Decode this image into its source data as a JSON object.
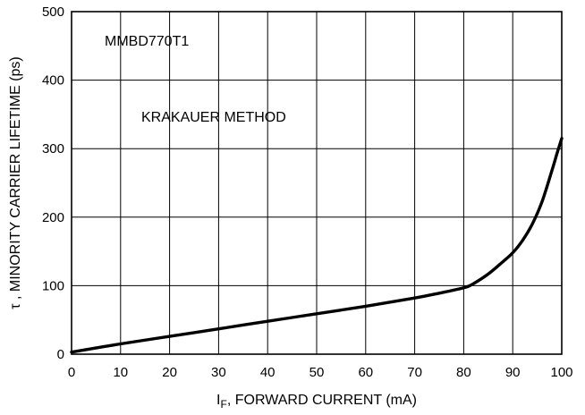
{
  "chart_data": {
    "type": "line",
    "title": "",
    "xlabel_main": "I",
    "xlabel_sub": "F",
    "xlabel_rest": ", FORWARD CURRENT (mA)",
    "ylabel": "τ , MINORITY CARRIER LIFETIME (ps)",
    "xlim": [
      0,
      100
    ],
    "ylim": [
      0,
      500
    ],
    "x_ticks": [
      "0",
      "10",
      "20",
      "30",
      "40",
      "50",
      "60",
      "70",
      "80",
      "90",
      "100"
    ],
    "y_ticks": [
      "0",
      "100",
      "200",
      "300",
      "400",
      "500"
    ],
    "grid": true,
    "annotations": [
      {
        "text": "MMBD770T1"
      },
      {
        "text": "KRAKAUER METHOD"
      }
    ],
    "series": [
      {
        "x": [
          0,
          10,
          20,
          30,
          40,
          50,
          60,
          70,
          75,
          80,
          82,
          85,
          88,
          90,
          92,
          94,
          96,
          98,
          99,
          100
        ],
        "y": [
          3,
          15,
          26,
          37,
          48,
          59,
          70,
          82,
          89,
          97,
          103,
          117,
          135,
          148,
          166,
          190,
          223,
          268,
          292,
          315
        ]
      }
    ]
  }
}
